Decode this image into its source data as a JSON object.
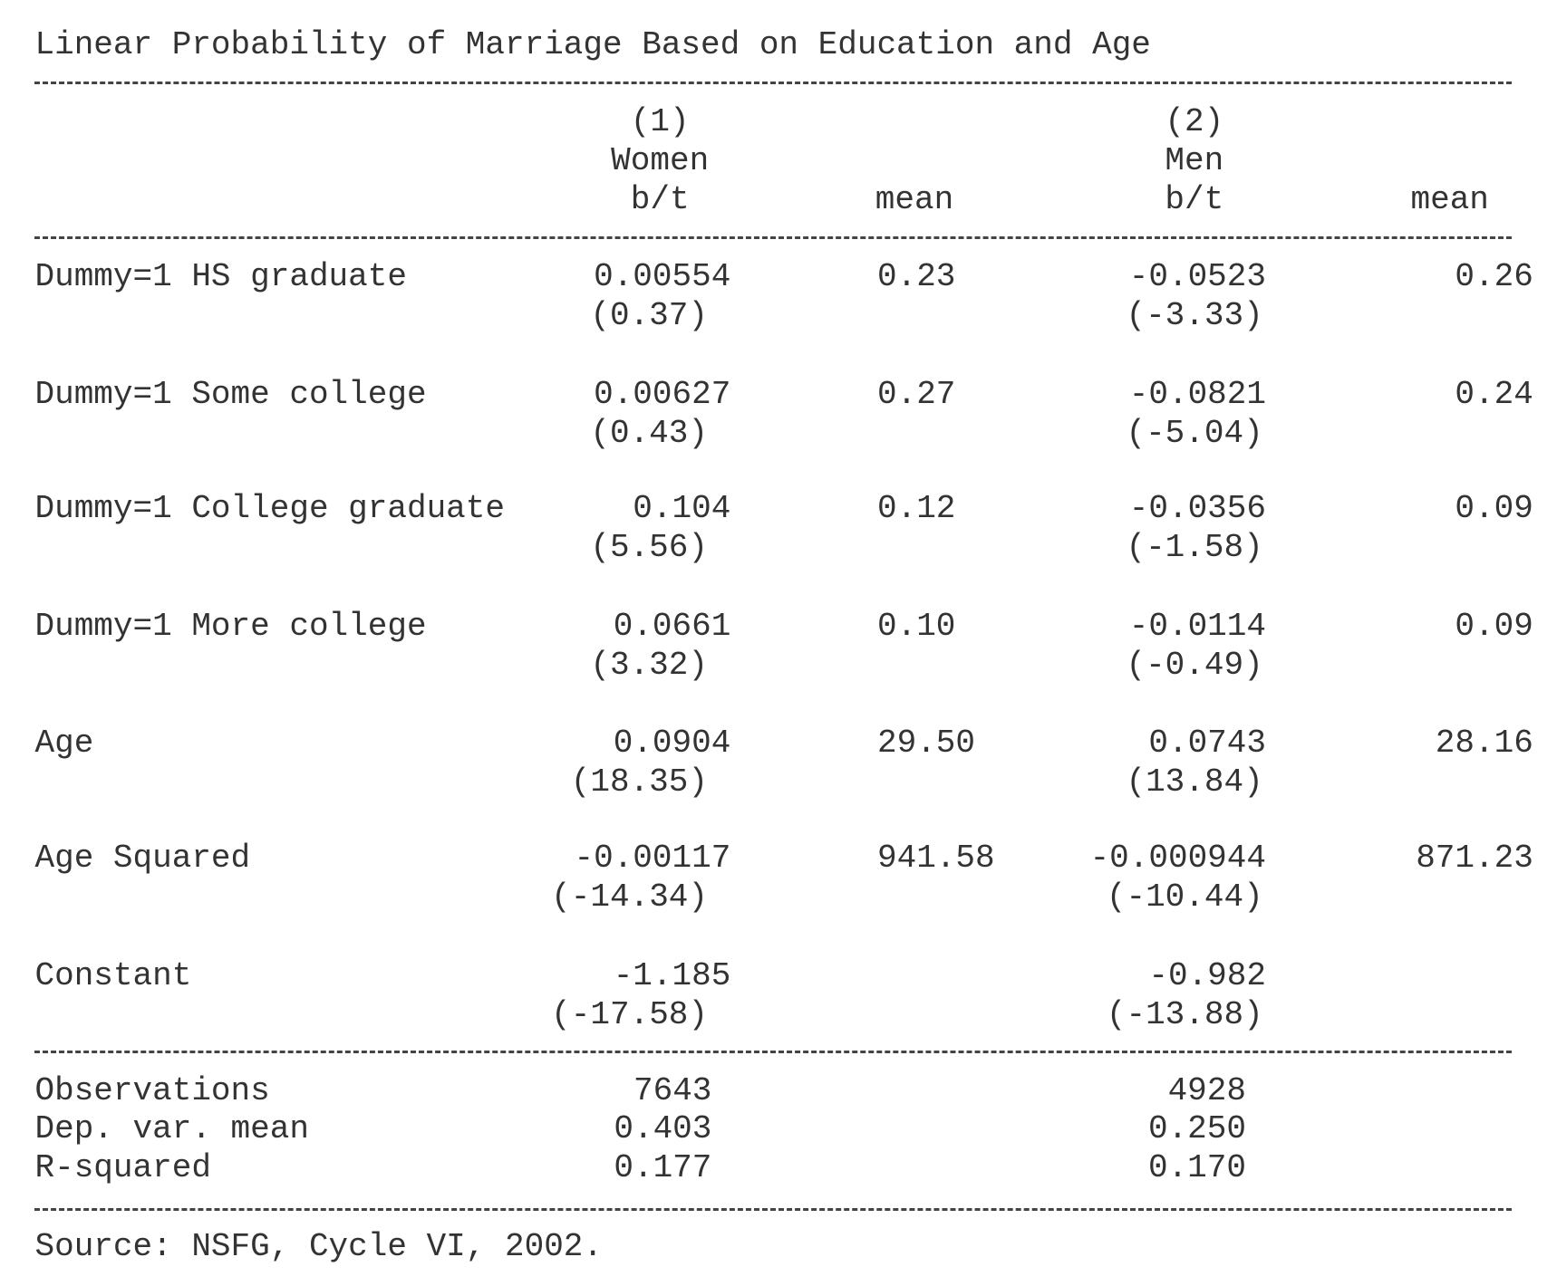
{
  "title": "Linear Probability of Marriage Based on Education and Age",
  "header": {
    "women_number": "(1)",
    "women_name": "Women",
    "women_stat": "b/t",
    "women_mean": "mean",
    "men_number": "(2)",
    "men_name": "Men",
    "men_stat": "b/t",
    "men_mean": "mean"
  },
  "rows": [
    {
      "label": "Dummy=1 HS graduate",
      "women_b": "0.00554",
      "women_t": "(0.37)",
      "women_mean": "0.23",
      "men_b": "-0.0523",
      "men_t": "(-3.33)",
      "men_mean": "0.26"
    },
    {
      "label": "Dummy=1 Some college",
      "women_b": "0.00627",
      "women_t": "(0.43)",
      "women_mean": "0.27",
      "men_b": "-0.0821",
      "men_t": "(-5.04)",
      "men_mean": "0.24"
    },
    {
      "label": "Dummy=1 College graduate",
      "women_b": "0.104",
      "women_t": "(5.56)",
      "women_mean": "0.12",
      "men_b": "-0.0356",
      "men_t": "(-1.58)",
      "men_mean": "0.09"
    },
    {
      "label": "Dummy=1 More college",
      "women_b": "0.0661",
      "women_t": "(3.32)",
      "women_mean": "0.10",
      "men_b": "-0.0114",
      "men_t": "(-0.49)",
      "men_mean": "0.09"
    },
    {
      "label": "Age",
      "women_b": "0.0904",
      "women_t": "(18.35)",
      "women_mean": "29.50",
      "men_b": "0.0743",
      "men_t": "(13.84)",
      "men_mean": "28.16"
    },
    {
      "label": "Age Squared",
      "women_b": "-0.00117",
      "women_t": "(-14.34)",
      "women_mean": "941.58",
      "men_b": "-0.000944",
      "men_t": "(-10.44)",
      "men_mean": "871.23"
    },
    {
      "label": "Constant",
      "women_b": "-1.185",
      "women_t": "(-17.58)",
      "men_b": "-0.982",
      "men_t": "(-13.88)"
    }
  ],
  "stats": [
    {
      "label": "Observations",
      "women": "7643",
      "men": "4928"
    },
    {
      "label": "Dep. var. mean",
      "women": "0.403",
      "men": "0.250"
    },
    {
      "label": "R-squared",
      "women": "0.177",
      "men": "0.170"
    }
  ],
  "source": "Source: NSFG, Cycle VI, 2002."
}
